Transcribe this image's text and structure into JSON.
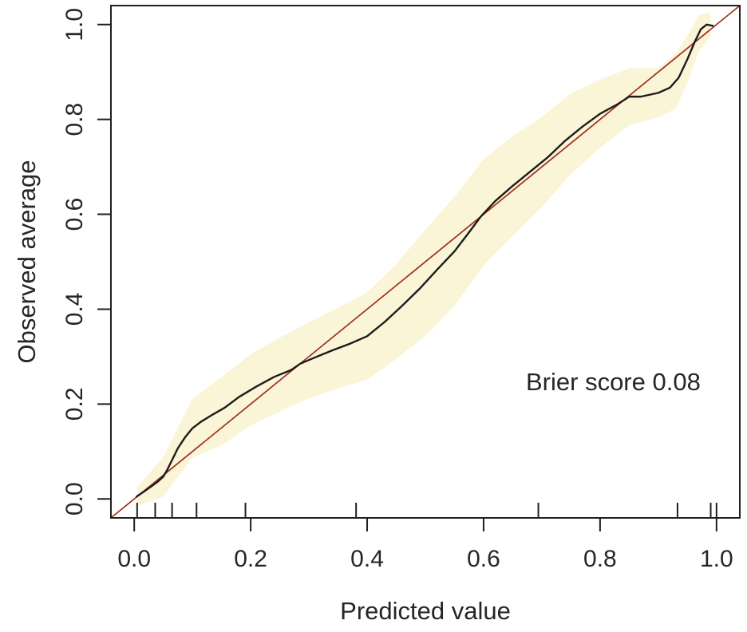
{
  "chart_data": {
    "type": "line",
    "title": "",
    "xlabel": "Predicted value",
    "ylabel": "Observed average",
    "annotation": {
      "text": "Brier score 0.08",
      "x": 0.67,
      "y": 0.25
    },
    "brier_score": 0.08,
    "xlim": [
      -0.04,
      1.04
    ],
    "ylim": [
      -0.04,
      1.04
    ],
    "grid": false,
    "legend": "none",
    "x_ticks": {
      "values": [
        0.0,
        0.2,
        0.4,
        0.6,
        0.8,
        1.0
      ],
      "labels": [
        "0.0",
        "0.2",
        "0.4",
        "0.6",
        "0.8",
        "1.0"
      ]
    },
    "y_ticks": {
      "values": [
        0.0,
        0.2,
        0.4,
        0.6,
        0.8,
        1.0
      ],
      "labels": [
        "0.0",
        "0.2",
        "0.4",
        "0.6",
        "0.8",
        "1.0"
      ]
    },
    "colors": {
      "curve": "#1c1c1c",
      "reference_line": "#9e2f22",
      "band_fill": "#faf5d6",
      "axis": "#1f1f1f",
      "text": "#262626"
    },
    "series": [
      {
        "name": "ideal-reference-line",
        "type": "line",
        "x": [
          -0.04,
          1.04
        ],
        "y": [
          -0.04,
          1.04
        ]
      },
      {
        "name": "calibration-curve",
        "type": "line",
        "x": [
          0.003,
          0.015,
          0.03,
          0.04,
          0.05,
          0.057,
          0.065,
          0.075,
          0.088,
          0.1,
          0.115,
          0.135,
          0.155,
          0.18,
          0.21,
          0.24,
          0.27,
          0.285,
          0.31,
          0.34,
          0.37,
          0.4,
          0.43,
          0.46,
          0.49,
          0.52,
          0.55,
          0.575,
          0.595,
          0.62,
          0.65,
          0.68,
          0.71,
          0.74,
          0.77,
          0.8,
          0.83,
          0.85,
          0.87,
          0.9,
          0.92,
          0.935,
          0.95,
          0.962,
          0.973,
          0.983,
          0.995
        ],
        "y": [
          0.004,
          0.014,
          0.027,
          0.036,
          0.047,
          0.062,
          0.082,
          0.107,
          0.131,
          0.149,
          0.163,
          0.178,
          0.192,
          0.215,
          0.237,
          0.257,
          0.272,
          0.285,
          0.298,
          0.313,
          0.327,
          0.343,
          0.373,
          0.407,
          0.443,
          0.483,
          0.522,
          0.562,
          0.595,
          0.628,
          0.66,
          0.69,
          0.72,
          0.755,
          0.785,
          0.812,
          0.832,
          0.848,
          0.848,
          0.856,
          0.867,
          0.888,
          0.927,
          0.962,
          0.99,
          1.0,
          0.997
        ]
      }
    ],
    "confidence_band": {
      "x": [
        0.005,
        0.05,
        0.1,
        0.15,
        0.2,
        0.25,
        0.3,
        0.35,
        0.4,
        0.45,
        0.5,
        0.55,
        0.6,
        0.65,
        0.7,
        0.75,
        0.8,
        0.85,
        0.9,
        0.93,
        0.95,
        0.97,
        0.99
      ],
      "upper": [
        0.025,
        0.089,
        0.211,
        0.257,
        0.305,
        0.34,
        0.372,
        0.403,
        0.435,
        0.495,
        0.568,
        0.637,
        0.716,
        0.765,
        0.805,
        0.855,
        0.884,
        0.908,
        0.908,
        0.939,
        0.977,
        1.021,
        1.025
      ],
      "lower": [
        -0.015,
        0.005,
        0.087,
        0.113,
        0.155,
        0.184,
        0.212,
        0.233,
        0.251,
        0.295,
        0.344,
        0.407,
        0.492,
        0.555,
        0.615,
        0.685,
        0.74,
        0.788,
        0.804,
        0.823,
        0.877,
        0.945,
        0.975
      ]
    },
    "rug_values": [
      0.005,
      0.036,
      0.065,
      0.107,
      0.191,
      0.381,
      0.694,
      0.933,
      0.99,
      1.0
    ]
  }
}
